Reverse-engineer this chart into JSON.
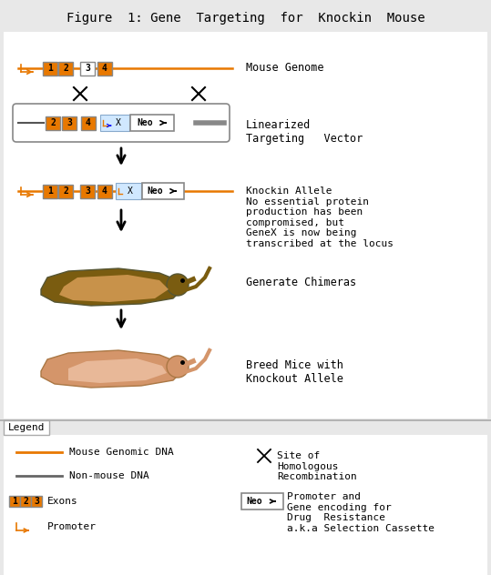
{
  "title": "Figure  1: Gene  Targeting  for  Knockin  Mouse",
  "title_fontsize": 10,
  "bg_color": "#e8e8e8",
  "main_bg": "#ffffff",
  "legend_bg": "#f8f8f8",
  "orange": "#E87800",
  "light_blue": "#d0e8ff",
  "dark": "#222222",
  "gray_line": "#777777",
  "label_mouse_genome": "Mouse Genome",
  "label_linearized": "Linearized\nTargeting   Vector",
  "label_knockin": "Knockin Allele\nNo essential protein\nproduction has been\ncompromised, but\nGeneX is now being\ntranscribed at the locus",
  "label_chimera": "Generate Chimeras",
  "label_breed": "Breed Mice with\nKnockout Allele",
  "legend_title": "Legend",
  "legend_line1": "Mouse Genomic DNA",
  "legend_line2": "Non-mouse DNA",
  "legend_exons": "Exons",
  "legend_promoter": "Promoter",
  "legend_site": "Site of\nHomologous\nRecombination",
  "legend_neo": "Promoter and\nGene encoding for\nDrug  Resistance\na.k.a Selection Cassette"
}
